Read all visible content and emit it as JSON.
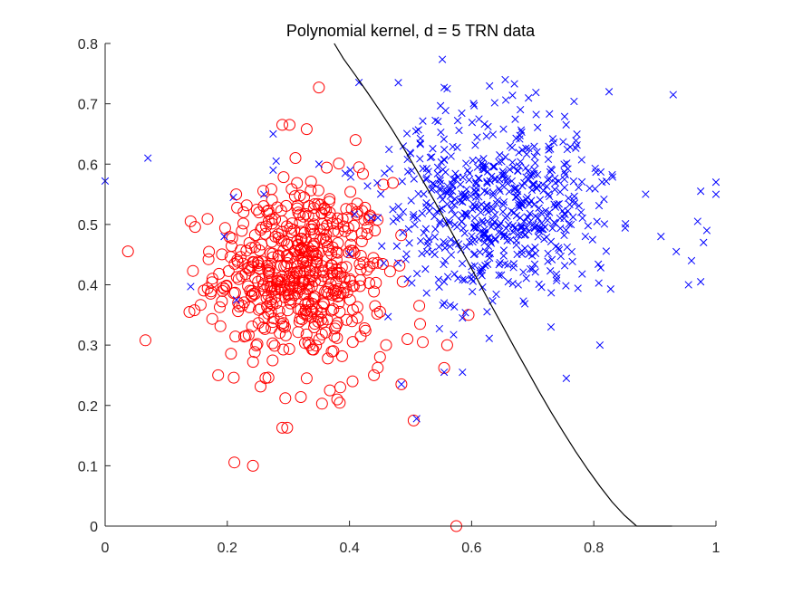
{
  "chart_data": {
    "type": "scatter",
    "title": "Polynomial kernel, d = 5 TRN data",
    "xlabel": "",
    "ylabel": "",
    "xlim": [
      0,
      1
    ],
    "ylim": [
      0,
      0.8
    ],
    "grid": false,
    "x_ticks": [
      "0",
      "0.2",
      "0.4",
      "0.6",
      "0.8",
      "1"
    ],
    "y_ticks": [
      "0",
      "0.1",
      "0.2",
      "0.3",
      "0.4",
      "0.5",
      "0.6",
      "0.7",
      "0.8"
    ],
    "x_tick_values": [
      0,
      0.2,
      0.4,
      0.6,
      0.8,
      1
    ],
    "y_tick_values": [
      0,
      0.1,
      0.2,
      0.3,
      0.4,
      0.5,
      0.6,
      0.7,
      0.8
    ],
    "series": [
      {
        "marker": "circle",
        "color": "#ff0000",
        "cluster": {
          "center": [
            0.32,
            0.42
          ],
          "spread": [
            0.07,
            0.075
          ],
          "count": 520
        },
        "points": [
          [
            0.35,
            0.727
          ],
          [
            0.29,
            0.665
          ],
          [
            0.302,
            0.665
          ],
          [
            0.33,
            0.658
          ],
          [
            0.41,
            0.64
          ],
          [
            0.252,
            0.52
          ],
          [
            0.168,
            0.394
          ],
          [
            0.138,
            0.355
          ],
          [
            0.066,
            0.308
          ],
          [
            0.185,
            0.25
          ],
          [
            0.242,
            0.1
          ],
          [
            0.29,
            0.163
          ],
          [
            0.298,
            0.163
          ],
          [
            0.295,
            0.212
          ],
          [
            0.355,
            0.203
          ],
          [
            0.38,
            0.21
          ],
          [
            0.368,
            0.225
          ],
          [
            0.385,
            0.23
          ],
          [
            0.405,
            0.24
          ],
          [
            0.33,
            0.245
          ],
          [
            0.485,
            0.235
          ],
          [
            0.505,
            0.175
          ],
          [
            0.575,
            0.0
          ],
          [
            0.555,
            0.262
          ],
          [
            0.56,
            0.3
          ],
          [
            0.595,
            0.35
          ],
          [
            0.46,
            0.3
          ],
          [
            0.495,
            0.31
          ],
          [
            0.52,
            0.305
          ],
          [
            0.45,
            0.28
          ],
          [
            0.44,
            0.25
          ]
        ]
      },
      {
        "marker": "x",
        "color": "#0000ff",
        "cluster": {
          "center": [
            0.64,
            0.53
          ],
          "spread": [
            0.09,
            0.075
          ],
          "count": 620
        },
        "points": [
          [
            0.0,
            0.572
          ],
          [
            0.07,
            0.61
          ],
          [
            0.14,
            0.397
          ],
          [
            0.195,
            0.48
          ],
          [
            0.21,
            0.545
          ],
          [
            0.215,
            0.375
          ],
          [
            0.26,
            0.55
          ],
          [
            0.275,
            0.59
          ],
          [
            0.28,
            0.605
          ],
          [
            0.275,
            0.65
          ],
          [
            0.35,
            0.6
          ],
          [
            0.48,
            0.735
          ],
          [
            0.56,
            0.725
          ],
          [
            0.555,
            0.727
          ],
          [
            0.655,
            0.74
          ],
          [
            0.67,
            0.733
          ],
          [
            0.825,
            0.72
          ],
          [
            0.93,
            0.715
          ],
          [
            0.955,
            0.4
          ],
          [
            0.975,
            0.405
          ],
          [
            0.975,
            0.555
          ],
          [
            0.97,
            0.505
          ],
          [
            1.0,
            0.55
          ],
          [
            1.0,
            0.57
          ],
          [
            0.81,
            0.3
          ],
          [
            0.755,
            0.245
          ],
          [
            0.73,
            0.33
          ],
          [
            0.585,
            0.255
          ],
          [
            0.555,
            0.255
          ],
          [
            0.485,
            0.235
          ],
          [
            0.51,
            0.178
          ],
          [
            0.555,
            0.37
          ],
          [
            0.585,
            0.345
          ],
          [
            0.555,
            0.405
          ],
          [
            0.6,
            0.41
          ],
          [
            0.91,
            0.48
          ],
          [
            0.935,
            0.455
          ],
          [
            0.96,
            0.44
          ],
          [
            0.985,
            0.49
          ]
        ]
      }
    ],
    "boundary": {
      "color": "#000000",
      "x": [
        0.375,
        0.39,
        0.41,
        0.43,
        0.45,
        0.47,
        0.49,
        0.51,
        0.53,
        0.55,
        0.57,
        0.59,
        0.61,
        0.63,
        0.65,
        0.67,
        0.69,
        0.71,
        0.73,
        0.75,
        0.77,
        0.79,
        0.81,
        0.83,
        0.85,
        0.87,
        0.89,
        0.91,
        0.928
      ],
      "y": [
        0.8,
        0.775,
        0.747,
        0.718,
        0.688,
        0.657,
        0.624,
        0.59,
        0.555,
        0.519,
        0.482,
        0.445,
        0.408,
        0.37,
        0.333,
        0.296,
        0.26,
        0.224,
        0.189,
        0.156,
        0.124,
        0.094,
        0.066,
        0.04,
        0.018,
        0.0,
        0.0,
        0.0,
        0.0
      ]
    }
  }
}
